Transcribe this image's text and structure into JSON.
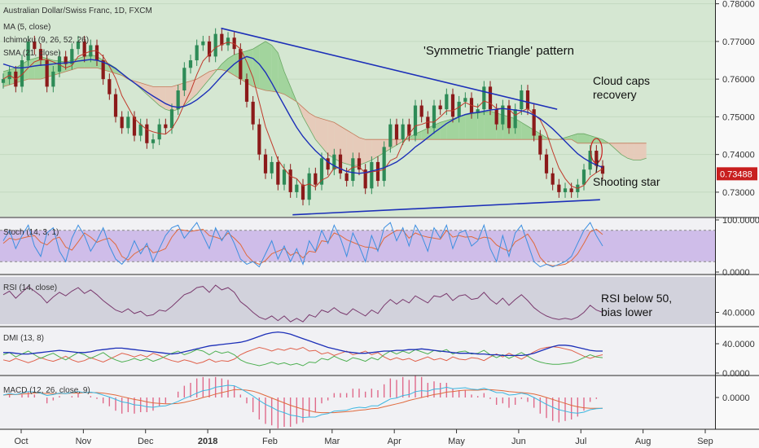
{
  "chart_data": {
    "type": "candlestick",
    "title": "Australian Dollar/Swiss Franc, 1D, FXCM",
    "legend": [
      "MA (5, close)",
      "Ichimoku (9, 26, 52, 26)",
      "SMA (21, close)"
    ],
    "x_labels": [
      "Oct",
      "Nov",
      "Dec",
      "2018",
      "Feb",
      "Mar",
      "Apr",
      "May",
      "Jun",
      "Jul",
      "Aug",
      "Sep"
    ],
    "price_axis": {
      "ticks": [
        "0.78000",
        "0.77000",
        "0.76000",
        "0.75000",
        "0.74000",
        "0.73000"
      ],
      "range": [
        0.7235,
        0.781
      ],
      "last_price": "0.73488"
    },
    "annotations": {
      "pattern": "'Symmetric Triangle' pattern",
      "cloud_line1": "Cloud caps",
      "cloud_line2": "recovery",
      "star": "Shooting star",
      "rsi_line1": "RSI below 50,",
      "rsi_line2": "bias lower"
    },
    "triangle": {
      "upper": [
        [
          0.25,
          0.7735
        ],
        [
          0.72,
          0.752
        ]
      ],
      "lower": [
        [
          0.35,
          0.724
        ],
        [
          0.78,
          0.728
        ]
      ]
    },
    "close": [
      0.76,
      0.762,
      0.758,
      0.765,
      0.77,
      0.768,
      0.765,
      0.758,
      0.762,
      0.766,
      0.764,
      0.768,
      0.77,
      0.766,
      0.769,
      0.765,
      0.76,
      0.756,
      0.75,
      0.747,
      0.75,
      0.745,
      0.748,
      0.743,
      0.744,
      0.748,
      0.747,
      0.752,
      0.757,
      0.763,
      0.765,
      0.769,
      0.77,
      0.766,
      0.772,
      0.769,
      0.771,
      0.768,
      0.76,
      0.754,
      0.748,
      0.74,
      0.735,
      0.738,
      0.732,
      0.736,
      0.73,
      0.732,
      0.728,
      0.735,
      0.732,
      0.739,
      0.736,
      0.74,
      0.735,
      0.733,
      0.739,
      0.736,
      0.731,
      0.738,
      0.733,
      0.742,
      0.748,
      0.744,
      0.748,
      0.745,
      0.753,
      0.75,
      0.747,
      0.753,
      0.752,
      0.756,
      0.75,
      0.754,
      0.755,
      0.751,
      0.752,
      0.758,
      0.752,
      0.748,
      0.753,
      0.747,
      0.752,
      0.757,
      0.752,
      0.745,
      0.74,
      0.735,
      0.732,
      0.73,
      0.731,
      0.73,
      0.732,
      0.736,
      0.741,
      0.737,
      0.7349
    ],
    "ma5": [
      0.76,
      0.761,
      0.76,
      0.7612,
      0.763,
      0.7646,
      0.7652,
      0.7652,
      0.7646,
      0.7638,
      0.763,
      0.7636,
      0.766,
      0.7668,
      0.7674,
      0.7676,
      0.766,
      0.7634,
      0.7602,
      0.7556,
      0.7526,
      0.7496,
      0.748,
      0.7466,
      0.746,
      0.7456,
      0.7454,
      0.7468,
      0.7496,
      0.7534,
      0.7568,
      0.7612,
      0.7648,
      0.7666,
      0.7684,
      0.7692,
      0.7698,
      0.7694,
      0.768,
      0.7646,
      0.7604,
      0.754,
      0.7474,
      0.743,
      0.7386,
      0.7362,
      0.7342,
      0.7336,
      0.7316,
      0.7322,
      0.7314,
      0.7332,
      0.734,
      0.7364,
      0.7364,
      0.7354,
      0.7366,
      0.7368,
      0.735,
      0.7354,
      0.7356,
      0.736,
      0.7384,
      0.7392,
      0.743,
      0.7454,
      0.7476,
      0.748,
      0.7486,
      0.7486,
      0.75,
      0.7516,
      0.7516,
      0.7526,
      0.7538,
      0.753,
      0.7526,
      0.7542,
      0.7536,
      0.7522,
      0.7522,
      0.752,
      0.7504,
      0.7514,
      0.7522,
      0.7506,
      0.7492,
      0.7458,
      0.7408,
      0.7364,
      0.7336,
      0.7316,
      0.731,
      0.7318,
      0.734,
      0.7352,
      0.7362
    ],
    "sma21": [
      0.764,
      0.7635,
      0.763,
      0.763,
      0.7632,
      0.7635,
      0.7637,
      0.7638,
      0.764,
      0.7642,
      0.7643,
      0.7645,
      0.7648,
      0.765,
      0.7652,
      0.765,
      0.7645,
      0.7638,
      0.7628,
      0.7615,
      0.7602,
      0.759,
      0.7578,
      0.7566,
      0.7555,
      0.7545,
      0.7535,
      0.7528,
      0.7525,
      0.7528,
      0.7535,
      0.7545,
      0.7558,
      0.7572,
      0.759,
      0.7608,
      0.7625,
      0.764,
      0.7652,
      0.766,
      0.7655,
      0.764,
      0.7618,
      0.759,
      0.756,
      0.753,
      0.75,
      0.7472,
      0.7448,
      0.7428,
      0.741,
      0.7395,
      0.738,
      0.737,
      0.7362,
      0.7355,
      0.7352,
      0.735,
      0.7352,
      0.7356,
      0.736,
      0.7365,
      0.7372,
      0.738,
      0.7392,
      0.7405,
      0.742,
      0.7432,
      0.7445,
      0.7458,
      0.747,
      0.7482,
      0.7492,
      0.75,
      0.7506,
      0.751,
      0.7512,
      0.7515,
      0.7518,
      0.752,
      0.7522,
      0.752,
      0.7518,
      0.7516,
      0.7512,
      0.7505,
      0.7495,
      0.7482,
      0.7468,
      0.7452,
      0.7435,
      0.7418,
      0.7402,
      0.739,
      0.738,
      0.7372,
      0.7366
    ],
    "cloud_a": [
      0.762,
      0.7625,
      0.763,
      0.764,
      0.765,
      0.7655,
      0.766,
      0.7655,
      0.765,
      0.7648,
      0.7645,
      0.765,
      0.7655,
      0.766,
      0.7665,
      0.766,
      0.765,
      0.764,
      0.763,
      0.7615,
      0.76,
      0.759,
      0.7575,
      0.756,
      0.7545,
      0.753,
      0.752,
      0.7515,
      0.752,
      0.753,
      0.7545,
      0.756,
      0.758,
      0.76,
      0.762,
      0.764,
      0.7655,
      0.7665,
      0.767,
      0.7675,
      0.768,
      0.769,
      0.77,
      0.769,
      0.767,
      0.762,
      0.758,
      0.754,
      0.75,
      0.747,
      0.744,
      0.742,
      0.74,
      0.739,
      0.738,
      0.7375,
      0.737,
      0.7372,
      0.7378,
      0.7385,
      0.7395,
      0.7405,
      0.7415,
      0.7425,
      0.7435,
      0.7445,
      0.7455,
      0.7462,
      0.747,
      0.7478,
      0.7485,
      0.749,
      0.7495,
      0.75,
      0.7505,
      0.7508,
      0.751,
      0.7512,
      0.7515,
      0.751,
      0.7505,
      0.75,
      0.7495,
      0.7485,
      0.7475,
      0.7465,
      0.7455,
      0.7445,
      0.744,
      0.744,
      0.7445,
      0.745,
      0.7455,
      0.7455,
      0.745,
      0.7445,
      0.744,
      0.743,
      0.7415,
      0.74,
      0.739,
      0.7385,
      0.7385,
      0.739
    ],
    "cloud_b": [
      0.758,
      0.7585,
      0.759,
      0.7595,
      0.76,
      0.76,
      0.76,
      0.7605,
      0.761,
      0.7615,
      0.762,
      0.7625,
      0.763,
      0.763,
      0.763,
      0.763,
      0.7625,
      0.762,
      0.7615,
      0.761,
      0.76,
      0.7595,
      0.759,
      0.7585,
      0.758,
      0.758,
      0.758,
      0.758,
      0.7585,
      0.759,
      0.7595,
      0.76,
      0.761,
      0.762,
      0.7625,
      0.7625,
      0.762,
      0.761,
      0.76,
      0.759,
      0.758,
      0.7575,
      0.757,
      0.7568,
      0.7565,
      0.756,
      0.755,
      0.754,
      0.7525,
      0.751,
      0.75,
      0.7495,
      0.749,
      0.7485,
      0.7475,
      0.7465,
      0.7455,
      0.7445,
      0.744,
      0.744,
      0.744,
      0.744,
      0.744,
      0.744,
      0.744,
      0.744,
      0.744,
      0.744,
      0.744,
      0.744,
      0.744,
      0.744,
      0.744,
      0.744,
      0.744,
      0.744,
      0.744,
      0.744,
      0.744,
      0.744,
      0.744,
      0.744,
      0.744,
      0.744,
      0.744,
      0.744,
      0.744,
      0.744,
      0.744,
      0.744,
      0.744,
      0.744,
      0.743,
      0.743,
      0.743,
      0.743,
      0.743,
      0.743,
      0.743,
      0.743,
      0.743,
      0.743,
      0.743,
      0.743
    ],
    "stoch": {
      "label": "Stoch (14, 3, 1)",
      "ticks": [
        "100.0000",
        "0.0000"
      ],
      "range": [
        0,
        100
      ],
      "k": [
        60,
        80,
        45,
        70,
        90,
        50,
        30,
        75,
        85,
        40,
        20,
        65,
        90,
        70,
        40,
        60,
        85,
        50,
        25,
        15,
        30,
        60,
        35,
        55,
        20,
        45,
        70,
        85,
        90,
        65,
        80,
        95,
        70,
        45,
        85,
        60,
        80,
        55,
        25,
        15,
        20,
        10,
        35,
        60,
        25,
        50,
        20,
        45,
        15,
        60,
        40,
        80,
        55,
        90,
        65,
        30,
        75,
        50,
        20,
        70,
        40,
        85,
        95,
        60,
        85,
        50,
        90,
        70,
        40,
        85,
        65,
        90,
        45,
        75,
        80,
        50,
        60,
        90,
        45,
        20,
        70,
        30,
        75,
        90,
        55,
        20,
        10,
        15,
        10,
        15,
        20,
        30,
        55,
        80,
        95,
        70,
        50
      ],
      "d": [
        55,
        65,
        62,
        65,
        68,
        70,
        57,
        52,
        63,
        67,
        48,
        42,
        58,
        75,
        67,
        57,
        62,
        65,
        53,
        30,
        23,
        35,
        42,
        50,
        37,
        40,
        45,
        67,
        82,
        80,
        78,
        80,
        82,
        70,
        67,
        63,
        75,
        65,
        53,
        32,
        20,
        15,
        22,
        35,
        40,
        45,
        32,
        38,
        27,
        40,
        38,
        60,
        58,
        75,
        70,
        62,
        57,
        52,
        48,
        47,
        43,
        65,
        73,
        80,
        80,
        65,
        75,
        70,
        67,
        65,
        63,
        80,
        67,
        70,
        67,
        68,
        63,
        67,
        65,
        52,
        45,
        40,
        58,
        65,
        73,
        55,
        28,
        15,
        12,
        13,
        15,
        22,
        35,
        55,
        77,
        82,
        72
      ]
    },
    "rsi": {
      "label": "RSI (14, close)",
      "ticks": [
        "40.0000"
      ],
      "range": [
        30,
        70
      ],
      "values": [
        55,
        58,
        52,
        57,
        62,
        58,
        54,
        48,
        53,
        57,
        54,
        58,
        61,
        56,
        59,
        55,
        50,
        46,
        42,
        40,
        43,
        39,
        41,
        37,
        38,
        42,
        41,
        45,
        50,
        55,
        57,
        61,
        62,
        57,
        63,
        59,
        61,
        57,
        49,
        45,
        40,
        36,
        34,
        37,
        33,
        37,
        32,
        35,
        32,
        38,
        36,
        42,
        40,
        44,
        40,
        38,
        43,
        40,
        37,
        42,
        39,
        46,
        51,
        47,
        51,
        48,
        54,
        51,
        48,
        54,
        53,
        56,
        50,
        54,
        55,
        51,
        52,
        57,
        51,
        47,
        52,
        46,
        51,
        55,
        50,
        44,
        40,
        37,
        35,
        34,
        35,
        34,
        36,
        40,
        46,
        42,
        40
      ]
    },
    "dmi": {
      "label": "DMI (13, 8)",
      "ticks": [
        "40.0000",
        "0.0000"
      ],
      "range": [
        0,
        60
      ],
      "adx": [
        28,
        28,
        27,
        26,
        26,
        27,
        28,
        29,
        30,
        31,
        30,
        29,
        28,
        28,
        29,
        31,
        32,
        33,
        34,
        34,
        33,
        32,
        31,
        30,
        29,
        28,
        27,
        26,
        27,
        29,
        31,
        33,
        35,
        37,
        38,
        39,
        40,
        41,
        42,
        44,
        47,
        50,
        53,
        55,
        56,
        55,
        53,
        50,
        47,
        44,
        41,
        38,
        35,
        33,
        31,
        29,
        28,
        27,
        27,
        28,
        29,
        30,
        30,
        31,
        31,
        32,
        32,
        33,
        32,
        31,
        30,
        29,
        28,
        27,
        27,
        27,
        26,
        26,
        25,
        25,
        24,
        24,
        24,
        24,
        25,
        27,
        30,
        33,
        36,
        38,
        38,
        37,
        35,
        33,
        31,
        30,
        30
      ],
      "plus_di": [
        25,
        28,
        22,
        26,
        30,
        25,
        20,
        24,
        27,
        22,
        18,
        23,
        28,
        25,
        20,
        24,
        28,
        22,
        18,
        15,
        17,
        20,
        17,
        20,
        16,
        19,
        23,
        27,
        30,
        25,
        28,
        32,
        30,
        25,
        30,
        27,
        29,
        25,
        18,
        14,
        12,
        10,
        12,
        15,
        12,
        14,
        11,
        13,
        10,
        15,
        14,
        20,
        18,
        23,
        19,
        16,
        21,
        19,
        16,
        21,
        18,
        25,
        30,
        26,
        30,
        27,
        32,
        29,
        26,
        31,
        29,
        32,
        26,
        29,
        30,
        26,
        27,
        31,
        25,
        21,
        25,
        20,
        24,
        28,
        23,
        18,
        15,
        13,
        12,
        12,
        13,
        14,
        17,
        21,
        25,
        22,
        21
      ],
      "minus_di": [
        18,
        16,
        20,
        17,
        14,
        17,
        21,
        18,
        16,
        19,
        23,
        18,
        15,
        17,
        21,
        18,
        15,
        19,
        23,
        27,
        25,
        22,
        25,
        22,
        27,
        24,
        20,
        17,
        15,
        18,
        16,
        13,
        15,
        19,
        15,
        17,
        16,
        19,
        25,
        29,
        32,
        35,
        33,
        30,
        33,
        31,
        34,
        32,
        35,
        30,
        31,
        26,
        28,
        24,
        27,
        30,
        25,
        27,
        30,
        25,
        28,
        22,
        18,
        21,
        18,
        20,
        16,
        19,
        22,
        18,
        20,
        17,
        22,
        19,
        18,
        21,
        20,
        17,
        22,
        26,
        22,
        27,
        23,
        19,
        24,
        29,
        33,
        35,
        36,
        35,
        33,
        31,
        27,
        23,
        20,
        23,
        25
      ]
    },
    "macd": {
      "label": "MACD (12, 26, close, 9)",
      "ticks": [
        "0.0000"
      ],
      "range": [
        -0.006,
        0.004
      ],
      "macd": [
        0.0005,
        0.0008,
        0.0006,
        0.0009,
        0.0012,
        0.0011,
        0.0009,
        0.0004,
        0.0006,
        0.0009,
        0.0008,
        0.001,
        0.0012,
        0.001,
        0.0011,
        0.0009,
        0.0005,
        0.0001,
        -0.0004,
        -0.0009,
        -0.0011,
        -0.0015,
        -0.0016,
        -0.0019,
        -0.002,
        -0.0018,
        -0.0017,
        -0.0013,
        -0.0008,
        -0.0002,
        0.0003,
        0.0009,
        0.0014,
        0.0016,
        0.0021,
        0.0023,
        0.0025,
        0.0024,
        0.0018,
        0.0011,
        0.0003,
        -0.0006,
        -0.0014,
        -0.002,
        -0.0027,
        -0.0031,
        -0.0036,
        -0.0038,
        -0.0041,
        -0.004,
        -0.004,
        -0.0035,
        -0.0033,
        -0.0028,
        -0.0027,
        -0.0026,
        -0.0022,
        -0.002,
        -0.0021,
        -0.0017,
        -0.0017,
        -0.001,
        -0.0003,
        -0.0001,
        0.0004,
        0.0006,
        0.0012,
        0.0014,
        0.0013,
        0.0017,
        0.0018,
        0.0021,
        0.0018,
        0.0019,
        0.002,
        0.0017,
        0.0016,
        0.0019,
        0.0015,
        0.001,
        0.001,
        0.0005,
        0.0006,
        0.0009,
        0.0006,
        0.0,
        -0.0007,
        -0.0014,
        -0.002,
        -0.0025,
        -0.0028,
        -0.0031,
        -0.0032,
        -0.003,
        -0.0025,
        -0.0023,
        -0.0022
      ],
      "signal": [
        0.0005,
        0.0006,
        0.0006,
        0.0007,
        0.0008,
        0.0009,
        0.0009,
        0.0008,
        0.0008,
        0.0008,
        0.0008,
        0.0009,
        0.0009,
        0.001,
        0.001,
        0.001,
        0.0009,
        0.0007,
        0.0005,
        0.0002,
        -0.0001,
        -0.0004,
        -0.0006,
        -0.0009,
        -0.0011,
        -0.0012,
        -0.0013,
        -0.0013,
        -0.0012,
        -0.001,
        -0.0007,
        -0.0004,
        0.0,
        0.0003,
        0.0007,
        0.001,
        0.0013,
        0.0016,
        0.0016,
        0.0015,
        0.0013,
        0.0009,
        0.0004,
        -0.0001,
        -0.0006,
        -0.0011,
        -0.0016,
        -0.002,
        -0.0024,
        -0.0027,
        -0.003,
        -0.0031,
        -0.0031,
        -0.0031,
        -0.003,
        -0.0029,
        -0.0028,
        -0.0026,
        -0.0025,
        -0.0023,
        -0.0022,
        -0.0019,
        -0.0016,
        -0.0013,
        -0.001,
        -0.0006,
        -0.0003,
        0.0,
        0.0003,
        0.0006,
        0.0008,
        0.0011,
        0.0012,
        0.0014,
        0.0015,
        0.0015,
        0.0015,
        0.0016,
        0.0016,
        0.0015,
        0.0014,
        0.0012,
        0.0011,
        0.001,
        0.0009,
        0.0007,
        0.0004,
        0.0,
        -0.0004,
        -0.0008,
        -0.0012,
        -0.0016,
        -0.0019,
        -0.0021,
        -0.0022,
        -0.0022,
        -0.0022
      ]
    }
  },
  "colors": {
    "up": "#2e8b57",
    "down": "#8b1a1a",
    "ma5": "#c0392b",
    "sma21": "#1c2fb8",
    "cloud_bull": "#9fd39a",
    "cloud_bear": "#e7c9b8",
    "triangle": "#1c2fb8",
    "price_tag": "#c81e1e",
    "stoch_k": "#3d8fe0",
    "stoch_d": "#e06a3d",
    "stoch_band": "#c9b4e6",
    "rsi_line": "#7a3a6e",
    "rsi_band": "#d2d2dc",
    "adx": "#1c2fb8",
    "plus_di": "#4caf50",
    "minus_di": "#e0604a",
    "macd_line": "#3db7e0",
    "macd_signal": "#e06a3d",
    "macd_hist": "#e06a8a",
    "circle": "#c81e1e"
  }
}
